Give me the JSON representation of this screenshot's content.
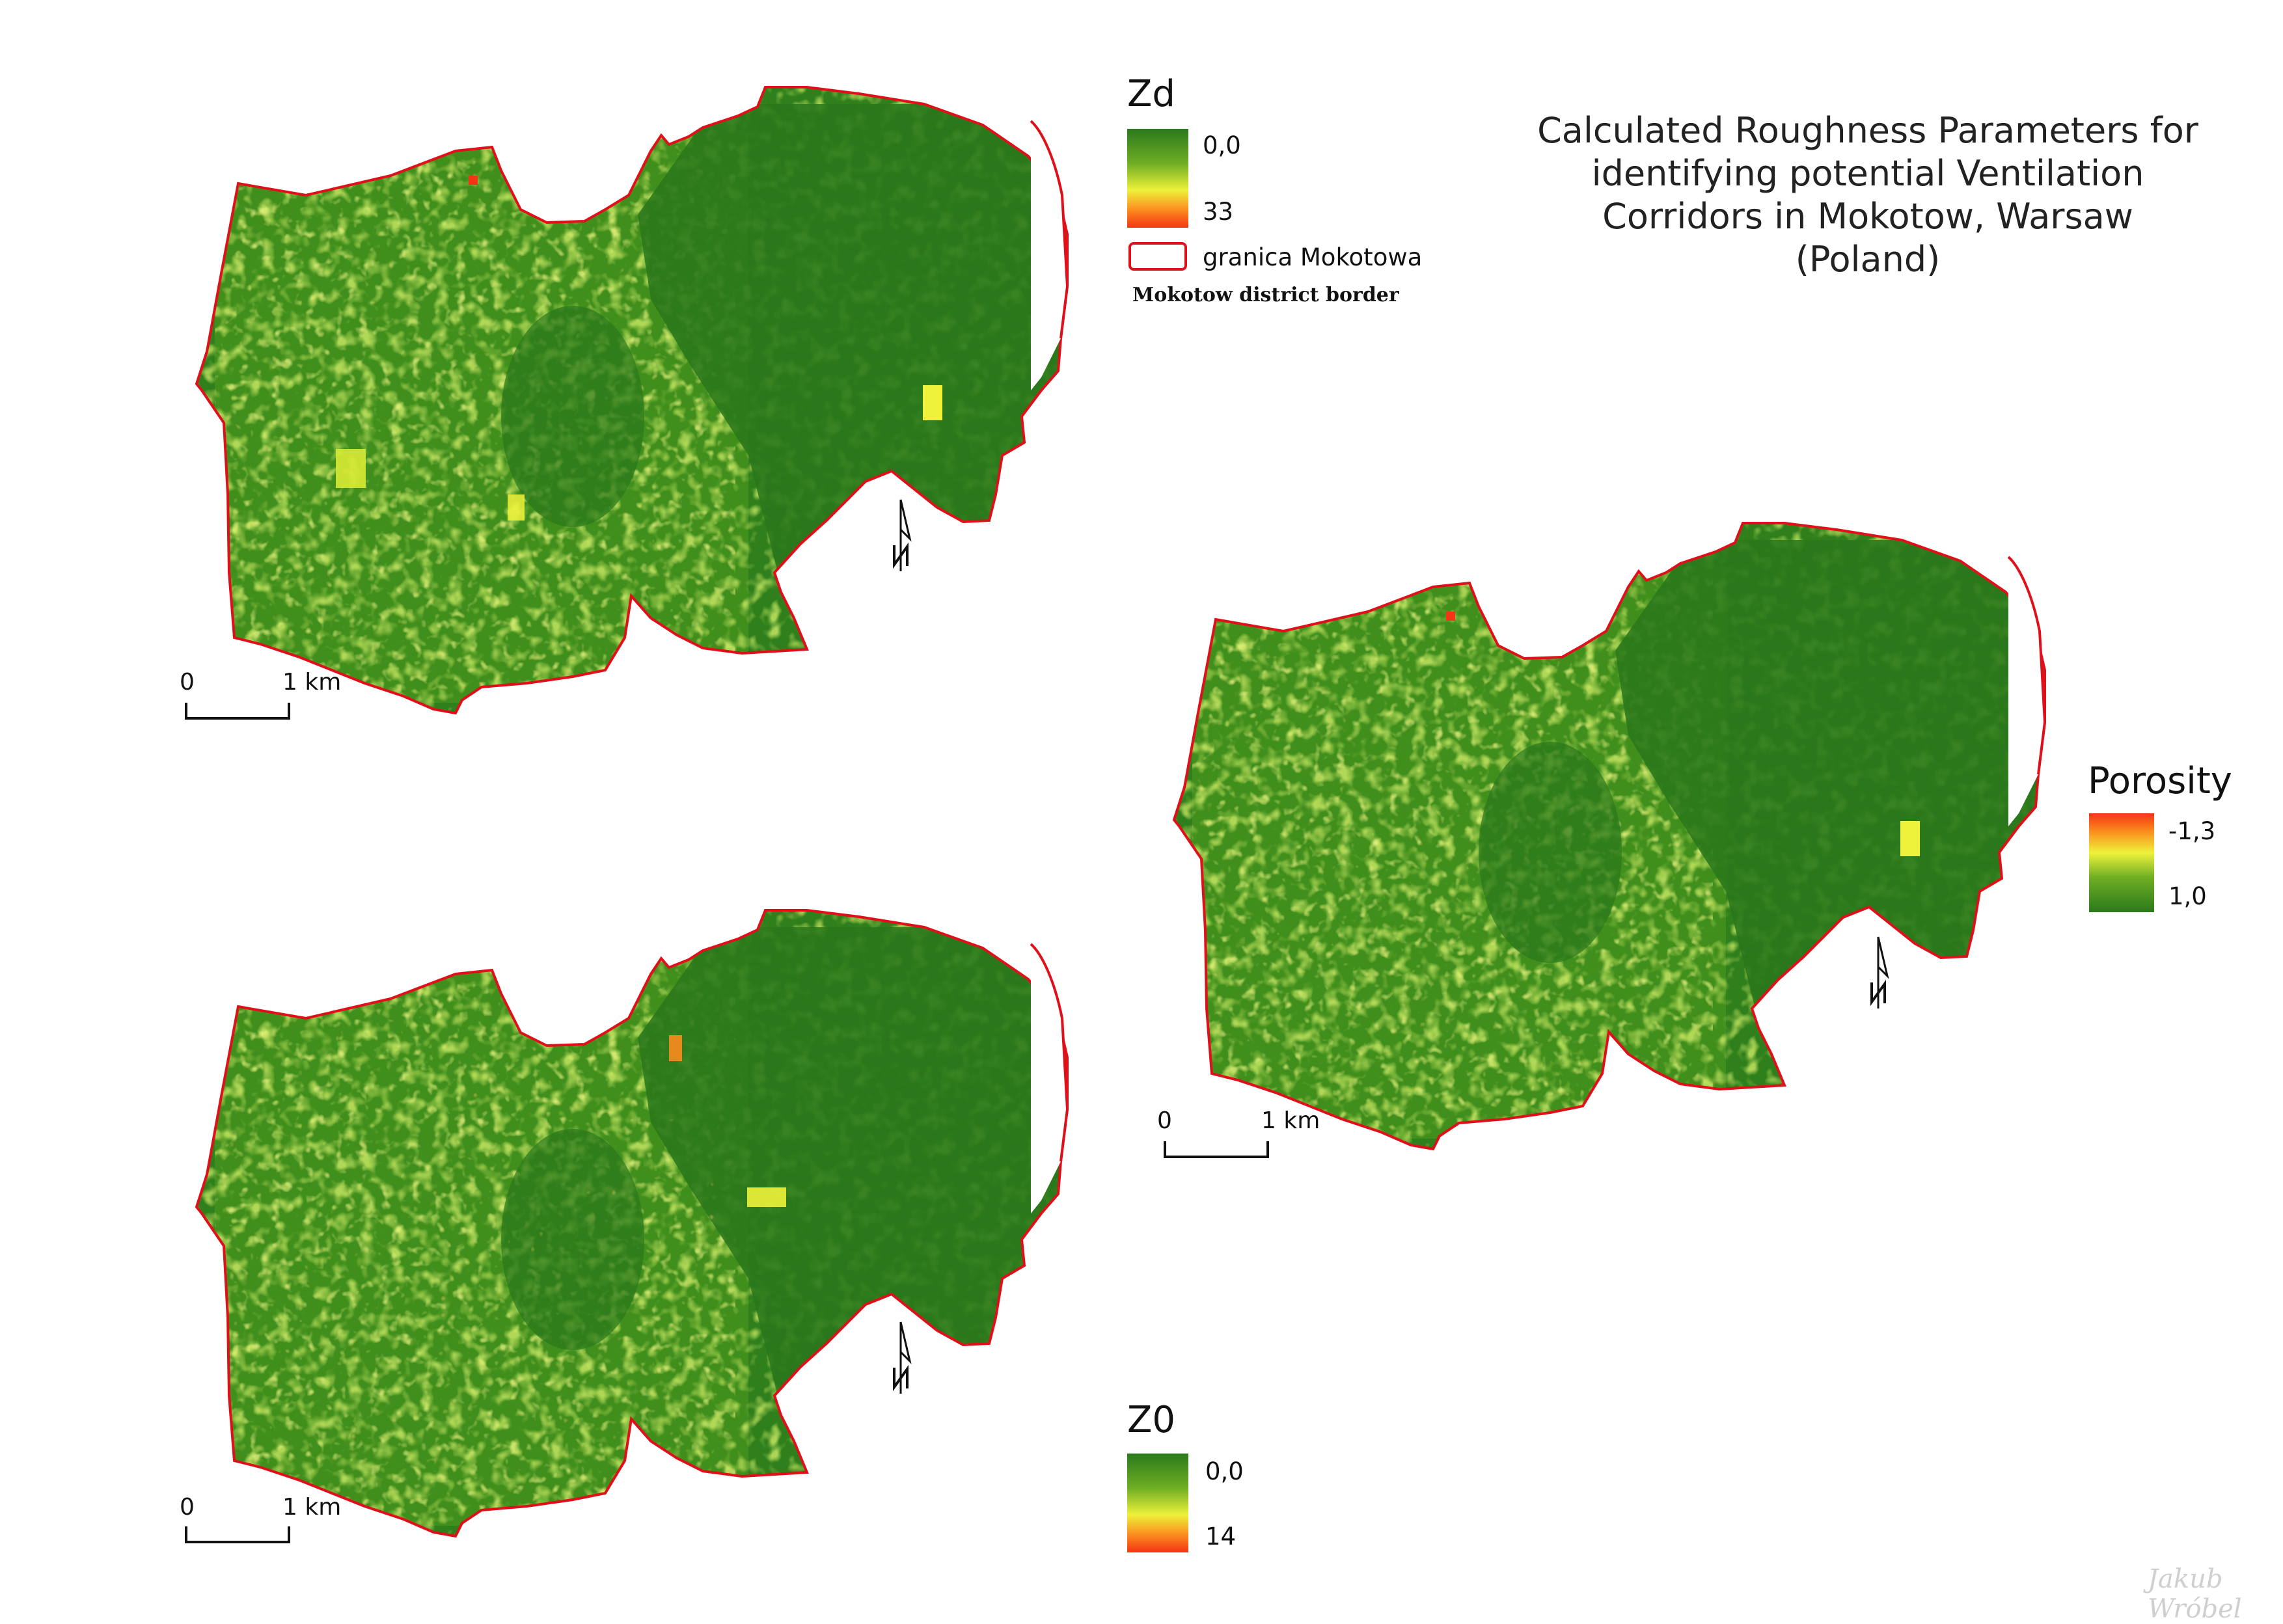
{
  "title": "Calculated Roughness Parameters for identifying potential Ventilation Corridors in Mokotow, Warsaw (Poland)",
  "title_lines": [
    "Calculated Roughness Parameters for",
    "identifying potential Ventilation",
    "Corridors in Mokotow, Warsaw",
    "(Poland)"
  ],
  "colors": {
    "dark_green": "#2b7a1c",
    "mid_green": "#4f9a1e",
    "light_green": "#8dc12c",
    "yellow": "#eef23a",
    "orange": "#fb8c1e",
    "red": "#f43414",
    "border_red": "#e0101a"
  },
  "legends": {
    "zd": {
      "title": "Zd",
      "min_label": "0,0",
      "max_label": "33"
    },
    "z0": {
      "title": "Z0",
      "min_label": "0,0",
      "max_label": "14"
    },
    "porosity": {
      "title": "Porosity",
      "min_label": "-1,3",
      "max_label": "1,0"
    },
    "border": {
      "label": "granica Mokotowa",
      "note": "Mokotow district border"
    }
  },
  "maps": [
    {
      "name": "Zd",
      "scale_start": "0",
      "scale_end": "1 km",
      "north_label": "N"
    },
    {
      "name": "Z0",
      "scale_start": "0",
      "scale_end": "1 km",
      "north_label": "N"
    },
    {
      "name": "Porosity",
      "scale_start": "0",
      "scale_end": "1 km",
      "north_label": "N"
    }
  ],
  "signature": "Jakub Wróbel"
}
